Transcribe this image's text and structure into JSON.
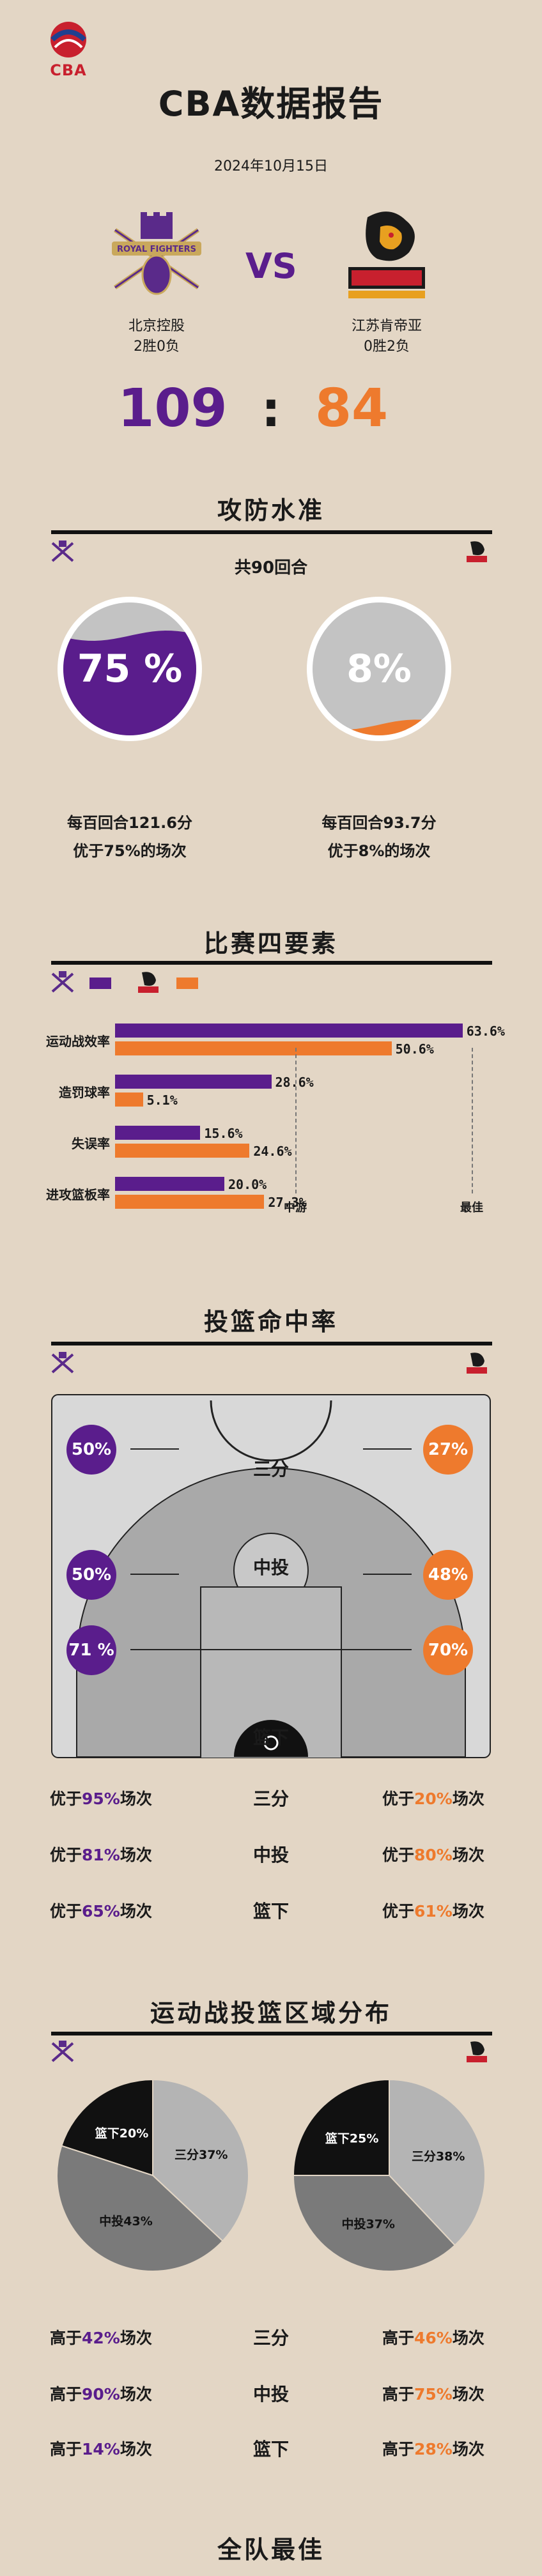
{
  "header": {
    "logo_text": "CBA",
    "title": "CBA数据报告",
    "date": "2024年10月15日",
    "vs": "VS"
  },
  "teams": {
    "home": {
      "name": "北京控股",
      "record": "2胜0负",
      "score": "109",
      "color": "#5a1d8c",
      "logo_icon": "royal-fighters-logo"
    },
    "away": {
      "name": "江苏肯帝亚",
      "record": "0胜2负",
      "score": "84",
      "color": "#ee7a2d",
      "logo_icon": "dragon-logo"
    },
    "score_sep": ":"
  },
  "offense_defense": {
    "title": "攻防水准",
    "subtitle": "共90回合",
    "home": {
      "pct_label": "75 %",
      "level": 0.75,
      "per100": "每百回合121.6分",
      "better": "优于75%的场次"
    },
    "away": {
      "pct_label": "8%",
      "level": 0.08,
      "per100": "每百回合93.7分",
      "better": "优于8%的场次"
    }
  },
  "four_factors": {
    "title": "比赛四要素",
    "axis_mid": "中游",
    "axis_best": "最佳",
    "metrics": [
      {
        "label": "运动战效率",
        "home": "63.6%",
        "away": "50.6%",
        "home_v": 63.6,
        "away_v": 50.6
      },
      {
        "label": "造罚球率",
        "home": "28.6%",
        "away": "5.1%",
        "home_v": 28.6,
        "away_v": 5.1
      },
      {
        "label": "失误率",
        "home": "15.6%",
        "away": "24.6%",
        "home_v": 15.6,
        "away_v": 24.6
      },
      {
        "label": "进攻篮板率",
        "home": "20.0%",
        "away": "27.3%",
        "home_v": 20.0,
        "away_v": 27.3
      }
    ]
  },
  "shooting": {
    "title": "投篮命中率",
    "zones": [
      {
        "zone": "三分",
        "home": "50%",
        "away": "27%",
        "home_better": "优于95%场次",
        "home_pre": "优于",
        "home_num": "95%",
        "home_post": "场次",
        "away_pre": "优于",
        "away_num": "20%",
        "away_post": "场次"
      },
      {
        "zone": "中投",
        "home": "50%",
        "away": "48%",
        "home_pre": "优于",
        "home_num": "81%",
        "home_post": "场次",
        "away_pre": "优于",
        "away_num": "80%",
        "away_post": "场次"
      },
      {
        "zone": "篮下",
        "home": "71 %",
        "away": "70%",
        "home_pre": "优于",
        "home_num": "65%",
        "home_post": "场次",
        "away_pre": "优于",
        "away_num": "61%",
        "away_post": "场次"
      }
    ]
  },
  "distribution": {
    "title": "运动战投篮区域分布",
    "home": [
      {
        "label": "篮下20%",
        "value": 20
      },
      {
        "label": "三分37%",
        "value": 37
      },
      {
        "label": "中投43%",
        "value": 43
      }
    ],
    "away": [
      {
        "label": "篮下25%",
        "value": 25
      },
      {
        "label": "三分38%",
        "value": 38
      },
      {
        "label": "中投37%",
        "value": 37
      }
    ],
    "rows": [
      {
        "zone": "三分",
        "home_pre": "高于",
        "home_num": "42%",
        "home_post": "场次",
        "away_pre": "高于",
        "away_num": "46%",
        "away_post": "场次"
      },
      {
        "zone": "中投",
        "home_pre": "高于",
        "home_num": "90%",
        "home_post": "场次",
        "away_pre": "高于",
        "away_num": "75%",
        "away_post": "场次"
      },
      {
        "zone": "篮下",
        "home_pre": "高于",
        "home_num": "14%",
        "home_post": "场次",
        "away_pre": "高于",
        "away_num": "28%",
        "away_post": "场次"
      }
    ]
  },
  "best": {
    "title": "全队最佳"
  }
}
